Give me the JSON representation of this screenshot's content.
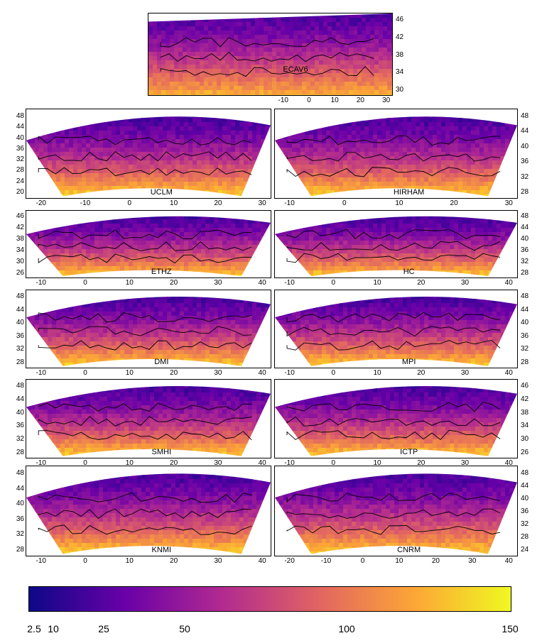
{
  "chart_data": {
    "type": "heatmap",
    "colorbar": {
      "ticks": [
        {
          "value": 2.5,
          "label": "2.5"
        },
        {
          "value": 10,
          "label": "10"
        },
        {
          "value": 25,
          "label": "25"
        },
        {
          "value": 50,
          "label": "50"
        },
        {
          "value": 100,
          "label": "100"
        },
        {
          "value": 150,
          "label": "150"
        }
      ],
      "range": [
        0,
        150
      ],
      "colors": [
        "#0d0887",
        "#6a00a8",
        "#b12a90",
        "#e16462",
        "#fca636",
        "#f0f921"
      ]
    },
    "panels": [
      {
        "name": "ECAV6",
        "xticks": [
          "-10",
          "0",
          "10",
          "20",
          "30"
        ],
        "yticks_right": [
          "46",
          "42",
          "38",
          "34",
          "30"
        ],
        "yticks_left": []
      },
      {
        "name": "UCLM",
        "xticks": [
          "-20",
          "-10",
          "0",
          "10",
          "20",
          "30"
        ],
        "yticks_left": [
          "48",
          "44",
          "40",
          "36",
          "32",
          "28",
          "24",
          "20"
        ],
        "yticks_right": []
      },
      {
        "name": "HIRHAM",
        "xticks": [
          "-10",
          "0",
          "10",
          "20",
          "30"
        ],
        "yticks_right": [
          "48",
          "44",
          "40",
          "36",
          "32",
          "28"
        ],
        "yticks_left": []
      },
      {
        "name": "ETHZ",
        "xticks": [
          "-10",
          "0",
          "10",
          "20",
          "30",
          "40"
        ],
        "yticks_left": [
          "46",
          "42",
          "38",
          "34",
          "30",
          "26"
        ],
        "yticks_right": []
      },
      {
        "name": "HC",
        "xticks": [
          "-10",
          "0",
          "10",
          "20",
          "30",
          "40"
        ],
        "yticks_right": [
          "48",
          "44",
          "40",
          "36",
          "32",
          "28"
        ],
        "yticks_left": []
      },
      {
        "name": "DMI",
        "xticks": [
          "-10",
          "0",
          "10",
          "20",
          "30",
          "40"
        ],
        "yticks_left": [
          "48",
          "44",
          "40",
          "36",
          "32",
          "28"
        ],
        "yticks_right": []
      },
      {
        "name": "MPI",
        "xticks": [
          "-10",
          "0",
          "10",
          "20",
          "30",
          "40"
        ],
        "yticks_right": [
          "48",
          "44",
          "40",
          "36",
          "32",
          "28"
        ],
        "yticks_left": []
      },
      {
        "name": "SMHI",
        "xticks": [
          "-10",
          "0",
          "10",
          "20",
          "30",
          "40"
        ],
        "yticks_left": [
          "48",
          "44",
          "40",
          "36",
          "32",
          "28"
        ],
        "yticks_right": []
      },
      {
        "name": "ICTP",
        "xticks": [
          "-10",
          "0",
          "10",
          "20",
          "30",
          "40"
        ],
        "yticks_right": [
          "46",
          "42",
          "38",
          "34",
          "30",
          "26"
        ],
        "yticks_left": []
      },
      {
        "name": "KNMI",
        "xticks": [
          "-10",
          "0",
          "10",
          "20",
          "30",
          "40"
        ],
        "yticks_left": [
          "48",
          "44",
          "40",
          "36",
          "32",
          "28"
        ],
        "yticks_right": []
      },
      {
        "name": "CNRM",
        "xticks": [
          "-20",
          "-10",
          "0",
          "10",
          "20",
          "30",
          "40"
        ],
        "yticks_right": [
          "48",
          "44",
          "40",
          "36",
          "32",
          "28",
          "24"
        ],
        "yticks_left": []
      }
    ]
  }
}
